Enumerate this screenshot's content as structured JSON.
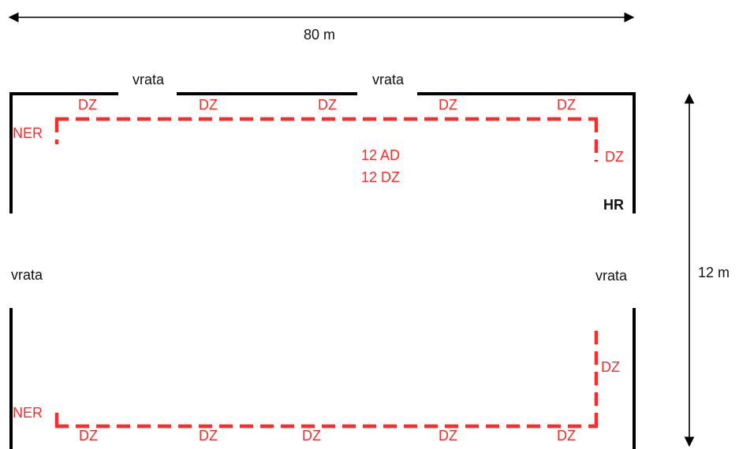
{
  "dimensions": {
    "width_label": "80 m",
    "height_label": "12 m"
  },
  "doors": {
    "top_left": "vrata",
    "top_right": "vrata",
    "side_left": "vrata",
    "side_right": "vrata"
  },
  "markers": {
    "dz": "DZ",
    "ner": "NER",
    "hr": "HR"
  },
  "summary": {
    "line1": "12 AD",
    "line2": "12 DZ"
  },
  "colors": {
    "wall": "#000000",
    "route": "#ff2a2a",
    "text_dark": "#111111",
    "text_red": "#ff2a2a"
  }
}
